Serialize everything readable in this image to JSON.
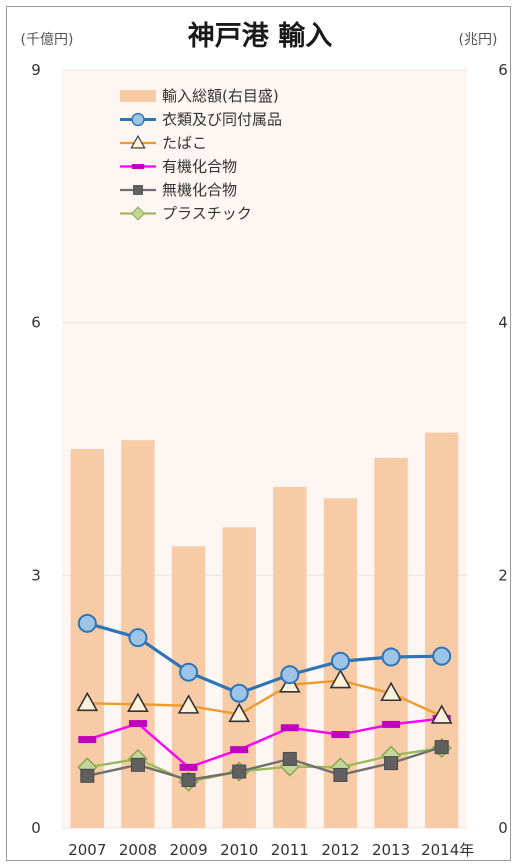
{
  "chart_data": {
    "type": "bar+line",
    "title": "神戸港 輸入",
    "left_unit": "(千億円)",
    "right_unit": "(兆円)",
    "categories": [
      "2007",
      "2008",
      "2009",
      "2010",
      "2011",
      "2012",
      "2013",
      "2014年"
    ],
    "left_axis": {
      "min": 0,
      "max": 9,
      "ticks": [
        "0",
        "3",
        "6",
        "9"
      ]
    },
    "right_axis": {
      "min": 0,
      "max": 6,
      "ticks": [
        "0",
        "2",
        "4",
        "6"
      ]
    },
    "bar_series": {
      "name": "輸入総額(右目盛)",
      "axis": "right",
      "color": "#f8cba7",
      "values": [
        3.0,
        3.07,
        2.23,
        2.38,
        2.7,
        2.61,
        2.93,
        3.13
      ]
    },
    "series": [
      {
        "name": "衣類及び同付属品",
        "axis": "left",
        "color": "#2e75b6",
        "marker": "circle",
        "values": [
          2.43,
          2.26,
          1.85,
          1.6,
          1.82,
          1.98,
          2.03,
          2.04
        ]
      },
      {
        "name": "たばこ",
        "axis": "left",
        "color": "#ed9b2f",
        "marker": "triangle",
        "values": [
          1.48,
          1.47,
          1.45,
          1.35,
          1.7,
          1.75,
          1.6,
          1.33
        ]
      },
      {
        "name": "有機化合物",
        "axis": "left",
        "color": "#ff00ff",
        "marker": "dash",
        "values": [
          1.05,
          1.24,
          0.72,
          0.93,
          1.19,
          1.11,
          1.23,
          1.3
        ]
      },
      {
        "name": "無機化合物",
        "axis": "left",
        "color": "#6f6f6f",
        "marker": "square",
        "values": [
          0.62,
          0.75,
          0.57,
          0.67,
          0.82,
          0.63,
          0.77,
          0.96
        ]
      },
      {
        "name": "プラスチック",
        "axis": "left",
        "color": "#9bbb59",
        "marker": "diamond",
        "values": [
          0.72,
          0.82,
          0.55,
          0.67,
          0.73,
          0.72,
          0.86,
          0.95
        ]
      }
    ],
    "grid": true,
    "legend_position": "top-left"
  }
}
